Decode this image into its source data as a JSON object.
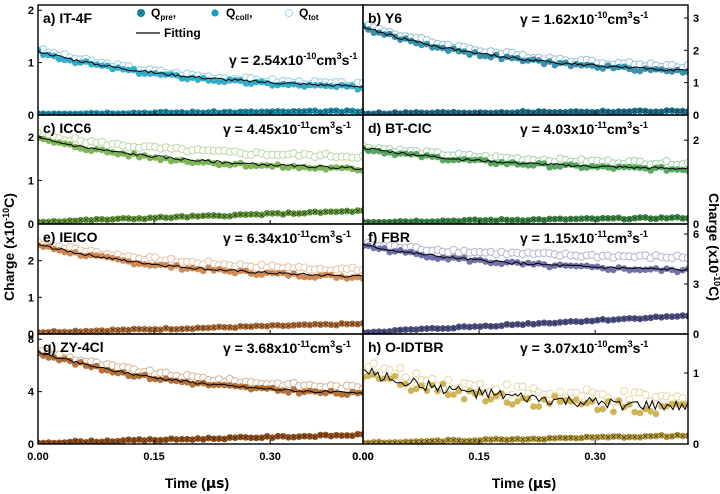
{
  "figure": {
    "ylabel_left": "Charge (x10",
    "ylabel_right": "Charge (x10",
    "ylabel_exp": "-10",
    "ylabel_unit": "C)",
    "xlabel_text": "Time (",
    "xlabel_mu": "μs",
    "xlabel_close": ")"
  },
  "legend": {
    "entries": [
      {
        "base": "Q",
        "sub": "pre",
        "sep": ","
      },
      {
        "base": "Q",
        "sub": "coll",
        "sep": ","
      },
      {
        "base": "Q",
        "sub": "tot",
        "sep": ""
      }
    ],
    "fitting": "Fitting"
  },
  "chart_data": [
    {
      "type": "scatter",
      "panel": "a) IT-4F",
      "gamma_text": "γ = 2.54x10",
      "gamma_exp": "-10",
      "gamma_unit": "cm",
      "cube": "3",
      "sinv": "s",
      "minus1": "-1",
      "color": "#17a0c4",
      "xlim": [
        0,
        0.42
      ],
      "ylim": [
        0,
        2.1
      ],
      "yticks": [
        "0",
        "1",
        "2"
      ],
      "xticks": [
        "0.00",
        "0.15",
        "0.30",
        "0.00"
      ],
      "series": {
        "q_tot": [
          1.25,
          0.58
        ],
        "q_coll": [
          1.2,
          0.52
        ],
        "q_pre": [
          0.03,
          0.07
        ],
        "fitting": [
          1.22,
          0.55
        ]
      }
    },
    {
      "type": "scatter",
      "panel": "b) Y6",
      "gamma_text": "γ = 1.62x10",
      "gamma_exp": "-10",
      "gamma_unit": "cm",
      "cube": "3",
      "sinv": "s",
      "minus1": "-1",
      "color": "#1a7fa0",
      "xlim": [
        0,
        0.42
      ],
      "ylim": [
        0,
        3.4
      ],
      "yticks": [
        "0",
        "1",
        "2",
        "3"
      ],
      "xticks": [
        "0.00",
        "0.15",
        "0.30"
      ],
      "series": {
        "q_tot": [
          2.8,
          1.5
        ],
        "q_coll": [
          2.7,
          1.35
        ],
        "q_pre": [
          0.05,
          0.12
        ],
        "fitting": [
          2.72,
          1.38
        ]
      }
    },
    {
      "type": "scatter",
      "panel": "c) ICC6",
      "gamma_text": "γ = 4.45x10",
      "gamma_exp": "-11",
      "gamma_unit": "cm",
      "cube": "3",
      "sinv": "s",
      "minus1": "-1",
      "color": "#6aa83c",
      "xlim": [
        0,
        0.42
      ],
      "ylim": [
        0,
        2.5
      ],
      "yticks": [
        "0",
        "1",
        "2"
      ],
      "xticks": [
        "0.00",
        "0.15",
        "0.30",
        "0.00"
      ],
      "series": {
        "q_tot": [
          2.05,
          1.55
        ],
        "q_coll": [
          1.95,
          1.25
        ],
        "q_pre": [
          0.05,
          0.3
        ],
        "fitting": [
          1.97,
          1.28
        ]
      }
    },
    {
      "type": "scatter",
      "panel": "d) BT-CIC",
      "gamma_text": "γ = 4.03x10",
      "gamma_exp": "-11",
      "gamma_unit": "cm",
      "cube": "3",
      "sinv": "s",
      "minus1": "-1",
      "color": "#3f9a4a",
      "xlim": [
        0,
        0.42
      ],
      "ylim": [
        0,
        2.6
      ],
      "yticks": [
        "0",
        "2"
      ],
      "xticks": [
        "0.00",
        "0.15",
        "0.30"
      ],
      "series": {
        "q_tot": [
          1.85,
          1.45
        ],
        "q_coll": [
          1.8,
          1.3
        ],
        "q_pre": [
          0.05,
          0.15
        ],
        "fitting": [
          1.82,
          1.32
        ]
      }
    },
    {
      "type": "scatter",
      "panel": "e) IEICO",
      "gamma_text": "γ = 6.34x10",
      "gamma_exp": "-11",
      "gamma_unit": "cm",
      "cube": "3",
      "sinv": "s",
      "minus1": "-1",
      "color": "#c8783a",
      "xlim": [
        0,
        0.42
      ],
      "ylim": [
        0,
        3.0
      ],
      "yticks": [
        "0",
        "1",
        "2"
      ],
      "xticks": [
        "0.00",
        "0.15",
        "0.30",
        "0.00"
      ],
      "series": {
        "q_tot": [
          2.5,
          1.75
        ],
        "q_coll": [
          2.42,
          1.55
        ],
        "q_pre": [
          0.05,
          0.28
        ],
        "fitting": [
          2.44,
          1.57
        ]
      }
    },
    {
      "type": "scatter",
      "panel": "f) FBR",
      "gamma_text": "γ = 1.15x10",
      "gamma_exp": "-11",
      "gamma_unit": "cm",
      "cube": "3",
      "sinv": "s",
      "minus1": "-1",
      "color": "#5a5a9a",
      "xlim": [
        0,
        0.42
      ],
      "ylim": [
        0,
        6.6
      ],
      "yticks": [
        "0",
        "3",
        "6"
      ],
      "xticks": [
        "0.00",
        "0.15",
        "0.30"
      ],
      "series": {
        "q_tot": [
          5.4,
          4.6
        ],
        "q_coll": [
          5.3,
          3.8
        ],
        "q_pre": [
          0.1,
          1.1
        ],
        "fitting": [
          5.32,
          3.85
        ]
      }
    },
    {
      "type": "scatter",
      "panel": "g) ZY-4Cl",
      "gamma_text": "γ = 3.68x10",
      "gamma_exp": "-11",
      "gamma_unit": "cm",
      "cube": "3",
      "sinv": "s",
      "minus1": "-1",
      "color": "#a85a1a",
      "xlim": [
        0,
        0.42
      ],
      "ylim": [
        0,
        8.4
      ],
      "yticks": [
        "0",
        "4",
        "8"
      ],
      "xticks": [
        "0.00",
        "0.15",
        "0.30",
        "0.00"
      ],
      "series": {
        "q_tot": [
          7.2,
          4.3
        ],
        "q_coll": [
          7.0,
          3.8
        ],
        "q_pre": [
          0.1,
          0.7
        ],
        "fitting": [
          7.05,
          3.85
        ]
      }
    },
    {
      "type": "scatter",
      "panel": "h) O-IDTBR",
      "gamma_text": "γ = 3.07x10",
      "gamma_exp": "-10",
      "gamma_unit": "cm",
      "cube": "3",
      "sinv": "s",
      "minus1": "-1",
      "color": "#c8a838",
      "xlim": [
        0,
        0.42
      ],
      "ylim": [
        0,
        1.55
      ],
      "yticks": [
        "0",
        "1"
      ],
      "xticks": [
        "0.00",
        "0.15",
        "0.30"
      ],
      "series": {
        "q_tot": [
          1.1,
          0.62
        ],
        "q_coll": [
          1.0,
          0.5
        ],
        "q_pre": [
          0.02,
          0.12
        ],
        "fitting": [
          1.02,
          0.52
        ]
      }
    }
  ]
}
